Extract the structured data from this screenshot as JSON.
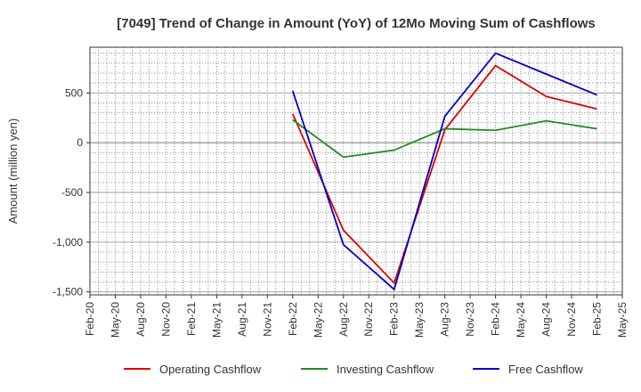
{
  "chart_data": {
    "type": "line",
    "title": "[7049]  Trend of Change in Amount (YoY) of 12Mo Moving Sum of Cashflows",
    "xlabel": "",
    "ylabel": "Amount (million yen)",
    "x_ticks": [
      "Feb-20",
      "May-20",
      "Aug-20",
      "Nov-20",
      "Feb-21",
      "May-21",
      "Aug-21",
      "Nov-21",
      "Feb-22",
      "May-22",
      "Aug-22",
      "Nov-22",
      "Feb-23",
      "May-23",
      "Aug-23",
      "Nov-23",
      "Feb-24",
      "May-24",
      "Aug-24",
      "Nov-24",
      "Feb-25",
      "May-25"
    ],
    "y_ticks": [
      500,
      0,
      -500,
      -1000,
      -1500
    ],
    "y_tick_labels": [
      "500",
      "0",
      "-500",
      "-1,000",
      "-1,500"
    ],
    "ylim": [
      -1530,
      960
    ],
    "grid": true,
    "legend_position": "bottom",
    "series": [
      {
        "name": "Operating Cashflow",
        "color": "#e00000",
        "points": [
          {
            "x": "Feb-22",
            "y": 290
          },
          {
            "x": "Aug-22",
            "y": -880
          },
          {
            "x": "Feb-23",
            "y": -1410
          },
          {
            "x": "Aug-23",
            "y": 130
          },
          {
            "x": "Feb-24",
            "y": 775
          },
          {
            "x": "Aug-24",
            "y": 465
          },
          {
            "x": "Feb-25",
            "y": 340
          }
        ]
      },
      {
        "name": "Investing Cashflow",
        "color": "#228b22",
        "points": [
          {
            "x": "Feb-22",
            "y": 230
          },
          {
            "x": "Aug-22",
            "y": -145
          },
          {
            "x": "Feb-23",
            "y": -75
          },
          {
            "x": "Aug-23",
            "y": 140
          },
          {
            "x": "Feb-24",
            "y": 125
          },
          {
            "x": "Aug-24",
            "y": 220
          },
          {
            "x": "Feb-25",
            "y": 140
          }
        ]
      },
      {
        "name": "Free Cashflow",
        "color": "#0000cc",
        "points": [
          {
            "x": "Feb-22",
            "y": 520
          },
          {
            "x": "Aug-22",
            "y": -1025
          },
          {
            "x": "Feb-23",
            "y": -1475
          },
          {
            "x": "Aug-23",
            "y": 265
          },
          {
            "x": "Feb-24",
            "y": 900
          },
          {
            "x": "Aug-24",
            "y": 690
          },
          {
            "x": "Feb-25",
            "y": 480
          }
        ]
      }
    ]
  }
}
